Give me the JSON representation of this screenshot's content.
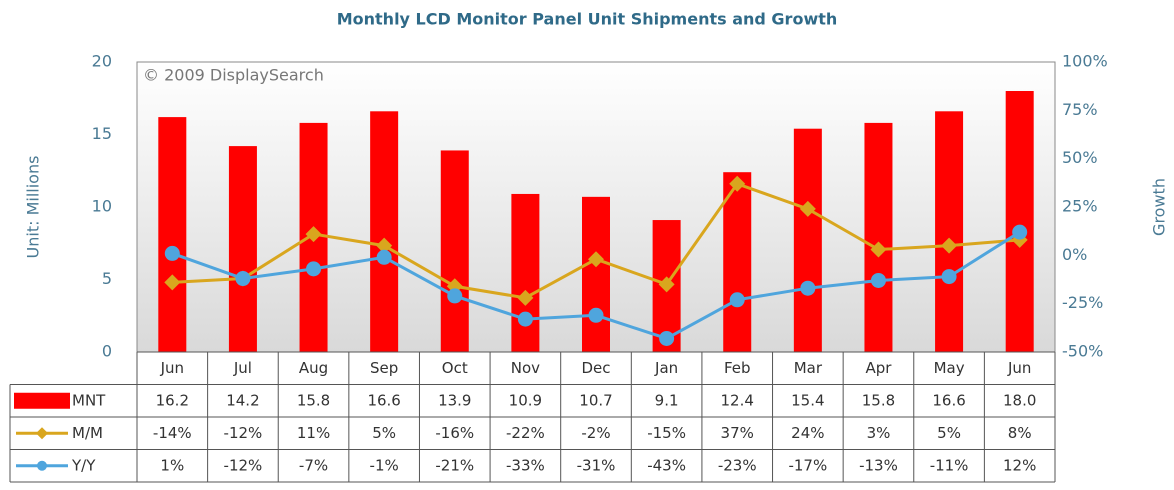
{
  "chart_data": {
    "type": "bar_line_table",
    "title": "Monthly LCD Monitor Panel Unit Shipments and Growth",
    "watermark": "© 2009 DisplaySearch",
    "ylabel": "Unit: Millions",
    "y2label": "Growth",
    "categories": [
      "Jun",
      "Jul",
      "Aug",
      "Sep",
      "Oct",
      "Nov",
      "Dec",
      "Jan",
      "Feb",
      "Mar",
      "Apr",
      "May",
      "Jun"
    ],
    "series": [
      {
        "name": "MNT",
        "type": "bar",
        "color": "#ff0000",
        "axis": "y",
        "values": [
          16.2,
          14.2,
          15.8,
          16.6,
          13.9,
          10.9,
          10.7,
          9.1,
          12.4,
          15.4,
          15.8,
          16.6,
          18.0
        ],
        "value_labels": [
          "16.2",
          "14.2",
          "15.8",
          "16.6",
          "13.9",
          "10.9",
          "10.7",
          "9.1",
          "12.4",
          "15.4",
          "15.8",
          "16.6",
          "18.0"
        ]
      },
      {
        "name": "M/M",
        "type": "line",
        "marker": "diamond",
        "color": "#d9a61e",
        "axis": "y2",
        "values": [
          -14,
          -12,
          11,
          5,
          -16,
          -22,
          -2,
          -15,
          37,
          24,
          3,
          5,
          8
        ],
        "value_labels": [
          "-14%",
          "-12%",
          "11%",
          "5%",
          "-16%",
          "-22%",
          "-2%",
          "-15%",
          "37%",
          "24%",
          "3%",
          "5%",
          "8%"
        ]
      },
      {
        "name": "Y/Y",
        "type": "line",
        "marker": "circle",
        "color": "#4fa5dd",
        "axis": "y2",
        "values": [
          1,
          -12,
          -7,
          -1,
          -21,
          -33,
          -31,
          -43,
          -23,
          -17,
          -13,
          -11,
          12
        ],
        "value_labels": [
          "1%",
          "-12%",
          "-7%",
          "-1%",
          "-21%",
          "-33%",
          "-31%",
          "-43%",
          "-23%",
          "-17%",
          "-13%",
          "-11%",
          "12%"
        ]
      }
    ],
    "ylim": [
      0,
      20
    ],
    "yticks": [
      0,
      5,
      10,
      15,
      20
    ],
    "y2lim": [
      -50,
      100
    ],
    "y2ticks": [
      {
        "value": -50,
        "label": "-50%"
      },
      {
        "value": -25,
        "label": "-25%"
      },
      {
        "value": 0,
        "label": "0%"
      },
      {
        "value": 25,
        "label": "25%"
      },
      {
        "value": 50,
        "label": "50%"
      },
      {
        "value": 75,
        "label": "75%"
      },
      {
        "value": 100,
        "label": "100%"
      }
    ]
  }
}
